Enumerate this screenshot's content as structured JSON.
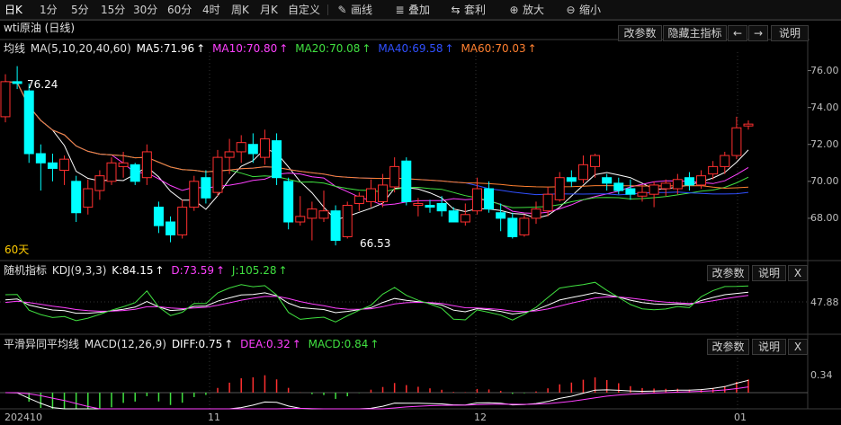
{
  "toolbar": {
    "periods": [
      "日K",
      "1分",
      "5分",
      "15分",
      "30分",
      "60分",
      "4时",
      "周K",
      "月K",
      "自定义"
    ],
    "active_period": "日K",
    "tools": [
      {
        "label": "画线",
        "icon": "pen-icon"
      },
      {
        "label": "叠加",
        "icon": "layers-icon"
      },
      {
        "label": "套利",
        "icon": "arbitrage-icon"
      },
      {
        "label": "放大",
        "icon": "zoom-in-icon"
      },
      {
        "label": "缩小",
        "icon": "zoom-out-icon"
      }
    ]
  },
  "main": {
    "title": "wti原油 (日线)",
    "indicator": "均线",
    "params": "MA(5,10,20,40,60)",
    "ma": [
      {
        "label": "MA5:71.96",
        "arrow": "↑",
        "color": "#ffffff"
      },
      {
        "label": "MA10:70.80",
        "arrow": "↑",
        "color": "#ff40ff"
      },
      {
        "label": "MA20:70.08",
        "arrow": "↑",
        "color": "#40e040"
      },
      {
        "label": "MA40:69.58",
        "arrow": "↑",
        "color": "#3050ff"
      },
      {
        "label": "MA60:70.03",
        "arrow": "↑",
        "color": "#ff8030"
      }
    ],
    "buttons": [
      "改参数",
      "隐藏主指标",
      "←",
      "→",
      "说明"
    ],
    "y_ticks": [
      "76.00",
      "74.00",
      "72.00",
      "70.00",
      "68.00"
    ],
    "annotations": {
      "high": "76.24",
      "low": "66.53",
      "period": "60天"
    }
  },
  "kdj": {
    "title": "随机指标",
    "params": "KDJ(9,3,3)",
    "k": {
      "label": "K:84.15",
      "arrow": "↑",
      "color": "#ffffff"
    },
    "d": {
      "label": "D:73.59",
      "arrow": "↑",
      "color": "#ff40ff"
    },
    "j": {
      "label": "J:105.28",
      "arrow": "↑",
      "color": "#40e040"
    },
    "buttons": [
      "改参数",
      "说明",
      "X"
    ],
    "y_tick": "47.88"
  },
  "macd": {
    "title": "平滑异同平均线",
    "params": "MACD(12,26,9)",
    "diff": {
      "label": "DIFF:0.75",
      "arrow": "↑",
      "color": "#ffffff"
    },
    "dea": {
      "label": "DEA:0.32",
      "arrow": "↑",
      "color": "#ff40ff"
    },
    "macd": {
      "label": "MACD:0.84",
      "arrow": "↑",
      "color": "#40e040"
    },
    "buttons": [
      "改参数",
      "说明",
      "X"
    ],
    "y_tick": "0.34"
  },
  "x_labels": [
    "202410",
    "11",
    "12",
    "01"
  ],
  "colors": {
    "up": "#ff3030",
    "down": "#00ffff",
    "bg": "#000000",
    "grid": "#444444"
  },
  "chart_data": {
    "type": "candlestick",
    "y_range": [
      66,
      77
    ],
    "candles": [
      {
        "o": 73.5,
        "h": 75.8,
        "l": 73.2,
        "c": 75.4
      },
      {
        "o": 75.4,
        "h": 76.24,
        "l": 75.0,
        "c": 75.3
      },
      {
        "o": 74.9,
        "h": 75.3,
        "l": 71.0,
        "c": 71.5
      },
      {
        "o": 71.5,
        "h": 72.0,
        "l": 69.5,
        "c": 71.0
      },
      {
        "o": 71.0,
        "h": 71.5,
        "l": 70.0,
        "c": 70.7
      },
      {
        "o": 70.6,
        "h": 71.4,
        "l": 69.8,
        "c": 71.2
      },
      {
        "o": 70.0,
        "h": 70.3,
        "l": 67.8,
        "c": 68.3
      },
      {
        "o": 68.6,
        "h": 70.1,
        "l": 68.2,
        "c": 69.6
      },
      {
        "o": 69.5,
        "h": 70.6,
        "l": 69.0,
        "c": 70.3
      },
      {
        "o": 70.0,
        "h": 71.3,
        "l": 69.8,
        "c": 71.0
      },
      {
        "o": 70.8,
        "h": 71.6,
        "l": 70.2,
        "c": 71.0
      },
      {
        "o": 70.9,
        "h": 71.0,
        "l": 69.8,
        "c": 70.0
      },
      {
        "o": 70.2,
        "h": 72.0,
        "l": 69.8,
        "c": 71.6
      },
      {
        "o": 68.6,
        "h": 68.9,
        "l": 67.2,
        "c": 67.6
      },
      {
        "o": 67.8,
        "h": 68.1,
        "l": 66.7,
        "c": 67.1
      },
      {
        "o": 67.1,
        "h": 69.0,
        "l": 66.9,
        "c": 68.6
      },
      {
        "o": 68.6,
        "h": 70.3,
        "l": 68.4,
        "c": 70.0
      },
      {
        "o": 70.2,
        "h": 70.6,
        "l": 68.8,
        "c": 69.1
      },
      {
        "o": 69.4,
        "h": 71.7,
        "l": 69.2,
        "c": 71.3
      },
      {
        "o": 71.3,
        "h": 72.3,
        "l": 70.4,
        "c": 71.6
      },
      {
        "o": 71.6,
        "h": 72.5,
        "l": 71.0,
        "c": 72.1
      },
      {
        "o": 72.0,
        "h": 72.6,
        "l": 71.0,
        "c": 71.5
      },
      {
        "o": 71.3,
        "h": 72.8,
        "l": 70.9,
        "c": 72.3
      },
      {
        "o": 72.2,
        "h": 72.6,
        "l": 69.8,
        "c": 70.2
      },
      {
        "o": 70.0,
        "h": 70.2,
        "l": 67.4,
        "c": 67.8
      },
      {
        "o": 67.8,
        "h": 69.2,
        "l": 67.6,
        "c": 68.1
      },
      {
        "o": 68.0,
        "h": 68.9,
        "l": 66.8,
        "c": 68.5
      },
      {
        "o": 68.0,
        "h": 69.5,
        "l": 67.8,
        "c": 68.4
      },
      {
        "o": 68.4,
        "h": 68.7,
        "l": 66.53,
        "c": 66.8
      },
      {
        "o": 67.0,
        "h": 68.9,
        "l": 66.9,
        "c": 68.7
      },
      {
        "o": 68.8,
        "h": 69.4,
        "l": 68.4,
        "c": 69.2
      },
      {
        "o": 68.9,
        "h": 70.1,
        "l": 68.6,
        "c": 69.6
      },
      {
        "o": 68.9,
        "h": 70.4,
        "l": 68.6,
        "c": 69.8
      },
      {
        "o": 69.7,
        "h": 71.3,
        "l": 69.4,
        "c": 70.8
      },
      {
        "o": 71.1,
        "h": 71.3,
        "l": 68.7,
        "c": 68.9
      },
      {
        "o": 68.7,
        "h": 69.1,
        "l": 68.1,
        "c": 68.8
      },
      {
        "o": 68.7,
        "h": 69.0,
        "l": 68.3,
        "c": 68.6
      },
      {
        "o": 68.8,
        "h": 69.2,
        "l": 68.1,
        "c": 68.4
      },
      {
        "o": 68.4,
        "h": 68.6,
        "l": 67.8,
        "c": 67.8
      },
      {
        "o": 67.8,
        "h": 68.8,
        "l": 67.6,
        "c": 68.2
      },
      {
        "o": 68.4,
        "h": 70.2,
        "l": 68.2,
        "c": 69.6
      },
      {
        "o": 69.6,
        "h": 70.0,
        "l": 68.3,
        "c": 68.5
      },
      {
        "o": 68.3,
        "h": 68.8,
        "l": 67.3,
        "c": 68.0
      },
      {
        "o": 68.0,
        "h": 68.3,
        "l": 66.9,
        "c": 67.0
      },
      {
        "o": 67.1,
        "h": 68.2,
        "l": 67.0,
        "c": 68.0
      },
      {
        "o": 68.0,
        "h": 68.9,
        "l": 67.7,
        "c": 68.5
      },
      {
        "o": 68.4,
        "h": 69.7,
        "l": 68.1,
        "c": 69.3
      },
      {
        "o": 69.0,
        "h": 70.5,
        "l": 68.9,
        "c": 70.2
      },
      {
        "o": 70.2,
        "h": 70.6,
        "l": 69.7,
        "c": 70.0
      },
      {
        "o": 70.1,
        "h": 71.4,
        "l": 69.9,
        "c": 70.9
      },
      {
        "o": 70.8,
        "h": 71.5,
        "l": 70.2,
        "c": 71.4
      },
      {
        "o": 70.2,
        "h": 70.4,
        "l": 69.5,
        "c": 69.9
      },
      {
        "o": 69.9,
        "h": 70.2,
        "l": 69.3,
        "c": 69.5
      },
      {
        "o": 69.6,
        "h": 70.1,
        "l": 69.0,
        "c": 69.3
      },
      {
        "o": 69.2,
        "h": 69.8,
        "l": 68.9,
        "c": 69.4
      },
      {
        "o": 69.3,
        "h": 70.0,
        "l": 68.6,
        "c": 69.8
      },
      {
        "o": 69.6,
        "h": 70.1,
        "l": 69.2,
        "c": 69.9
      },
      {
        "o": 69.6,
        "h": 70.4,
        "l": 69.3,
        "c": 70.1
      },
      {
        "o": 70.2,
        "h": 70.5,
        "l": 69.5,
        "c": 69.8
      },
      {
        "o": 69.8,
        "h": 70.6,
        "l": 69.6,
        "c": 70.3
      },
      {
        "o": 70.4,
        "h": 71.1,
        "l": 70.1,
        "c": 70.8
      },
      {
        "o": 70.8,
        "h": 71.6,
        "l": 70.4,
        "c": 71.4
      },
      {
        "o": 71.4,
        "h": 73.5,
        "l": 71.2,
        "c": 72.9
      },
      {
        "o": 73.0,
        "h": 73.3,
        "l": 72.8,
        "c": 73.1
      }
    ]
  }
}
